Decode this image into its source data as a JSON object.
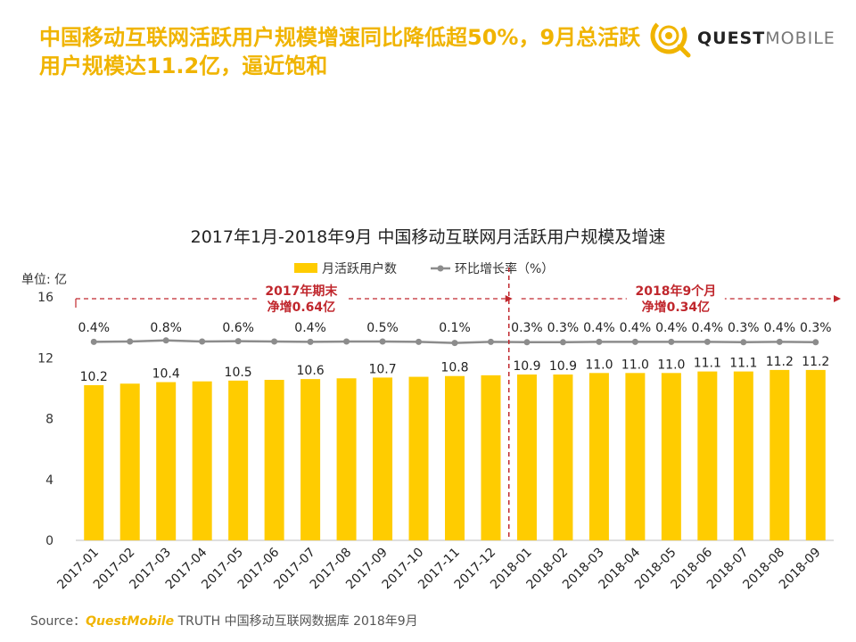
{
  "headline": "中国移动互联网活跃用户规模增速同比降低超50%，9月总活跃用户规模达11.2亿，逼近饱和",
  "logo": {
    "brand_bold": "QUEST",
    "brand_light": "MOBILE",
    "icon": "questmobile-logo-icon"
  },
  "source": {
    "prefix": "Source：",
    "brand": "QuestMobile",
    "rest": " TRUTH 中国移动互联网数据库 2018年9月"
  },
  "colors": {
    "bar": "#ffcc00",
    "line": "#8c8c8c",
    "annotation": "#c0272d",
    "headline": "#f0b400"
  },
  "chart_data": {
    "type": "bar",
    "title": "2017年1月-2018年9月 中国移动互联网月活跃用户规模及增速",
    "ylabel": "单位: 亿",
    "ylim": [
      0,
      16
    ],
    "yticks": [
      0,
      4,
      8,
      12,
      16
    ],
    "legend": {
      "placement": "top-center",
      "bar_label": "月活跃用户数",
      "line_label": "环比增长率（%）"
    },
    "categories": [
      "2017-01",
      "2017-02",
      "2017-03",
      "2017-04",
      "2017-05",
      "2017-06",
      "2017-07",
      "2017-08",
      "2017-09",
      "2017-10",
      "2017-11",
      "2017-12",
      "2018-01",
      "2018-02",
      "2018-03",
      "2018-04",
      "2018-05",
      "2018-06",
      "2018-07",
      "2018-08",
      "2018-09"
    ],
    "series": [
      {
        "name": "月活跃用户数",
        "type": "bar",
        "values": [
          10.2,
          10.3,
          10.4,
          10.45,
          10.5,
          10.55,
          10.6,
          10.65,
          10.7,
          10.75,
          10.8,
          10.85,
          10.9,
          10.9,
          11.0,
          11.0,
          11.0,
          11.1,
          11.1,
          11.2,
          11.2
        ],
        "labels": [
          "10.2",
          "",
          "10.4",
          "",
          "10.5",
          "",
          "10.6",
          "",
          "10.7",
          "",
          "10.8",
          "",
          "10.9",
          "10.9",
          "11.0",
          "11.0",
          "11.0",
          "11.1",
          "11.1",
          "11.2",
          "11.2"
        ]
      },
      {
        "name": "环比增长率（%）",
        "type": "line",
        "values": [
          0.4,
          0.5,
          0.8,
          0.5,
          0.6,
          0.5,
          0.4,
          0.5,
          0.5,
          0.4,
          0.1,
          0.4,
          0.3,
          0.3,
          0.4,
          0.4,
          0.4,
          0.4,
          0.3,
          0.4,
          0.3
        ],
        "labels": [
          "0.4%",
          "",
          "0.8%",
          "",
          "0.6%",
          "",
          "0.4%",
          "",
          "0.5%",
          "",
          "0.1%",
          "",
          "0.3%",
          "0.3%",
          "0.4%",
          "0.4%",
          "0.4%",
          "0.4%",
          "0.3%",
          "0.4%",
          "0.3%"
        ]
      }
    ],
    "annotations": [
      {
        "text": [
          "2017年期末",
          "净增0.64亿"
        ],
        "range": [
          "2017-01",
          "2017-12"
        ]
      },
      {
        "text": [
          "2018年9个月",
          "净增0.34亿"
        ],
        "range": [
          "2018-01",
          "2018-09"
        ]
      }
    ],
    "divider_after": "2017-12",
    "grid": false
  }
}
